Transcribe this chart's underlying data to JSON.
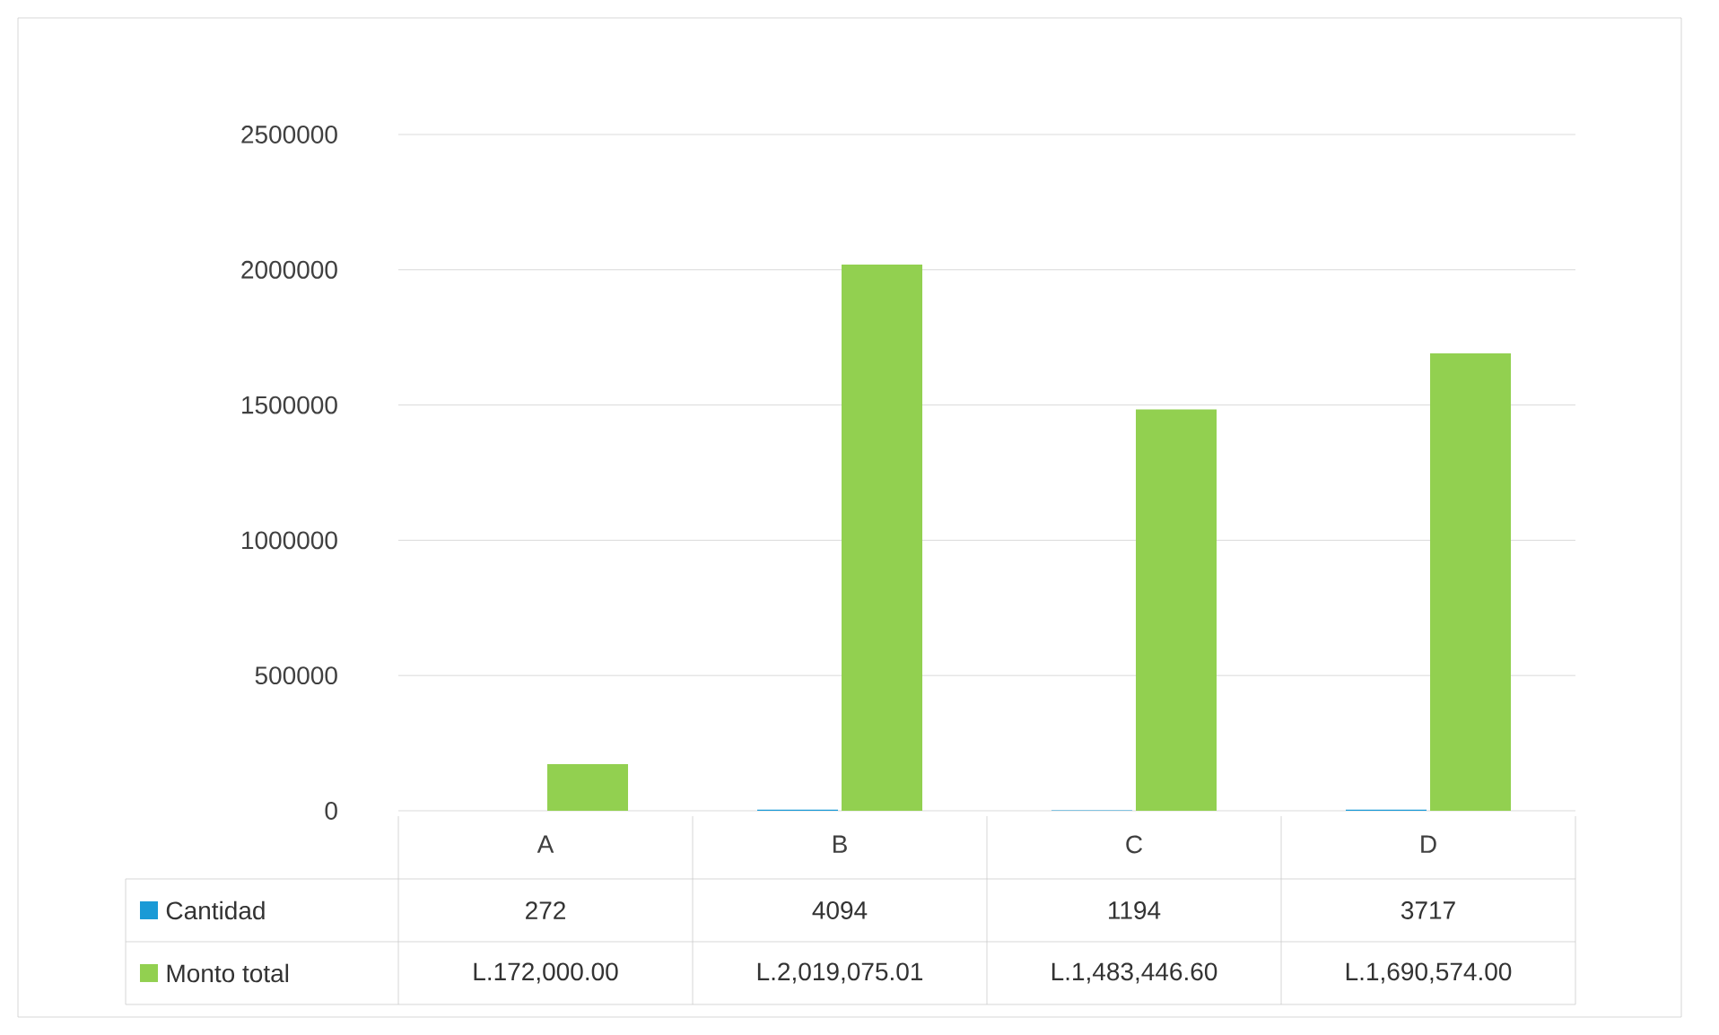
{
  "chart_data": {
    "type": "bar",
    "categories": [
      "A",
      "B",
      "C",
      "D"
    ],
    "series": [
      {
        "name": "Cantidad",
        "color": "#1a9ad6",
        "values": [
          272,
          4094,
          1194,
          3717
        ],
        "value_labels": [
          "272",
          "4094",
          "1194",
          "3717"
        ]
      },
      {
        "name": "Monto total",
        "color": "#92d050",
        "values": [
          172000.0,
          2019075.01,
          1483446.6,
          1690574.0
        ],
        "value_labels": [
          "L.172,000.00",
          "L.2,019,075.01",
          "L.1,483,446.60",
          "L.1,690,574.00"
        ]
      }
    ],
    "ylim": [
      0,
      2500000
    ],
    "yticks": [
      0,
      500000,
      1000000,
      1500000,
      2000000,
      2500000
    ],
    "grid": "y",
    "legend": "bottom"
  }
}
